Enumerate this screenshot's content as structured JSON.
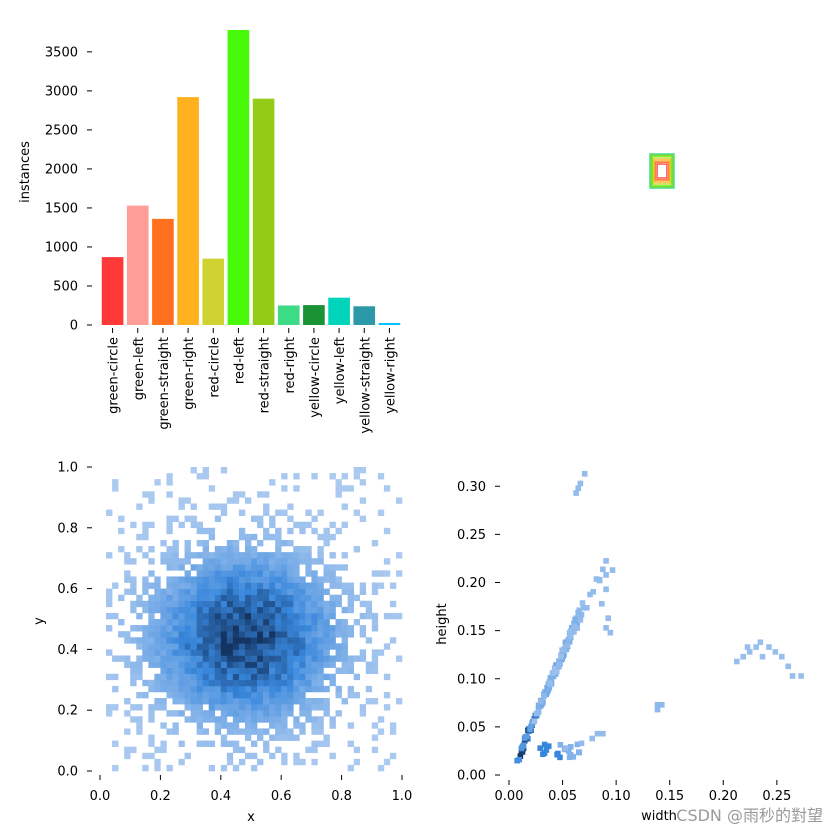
{
  "watermark": "CSDN @雨秒的對望",
  "chart_data": [
    {
      "type": "bar",
      "ylabel": "instances",
      "xlabel": "",
      "ylim": [
        0,
        3800
      ],
      "yticks": [
        0,
        500,
        1000,
        1500,
        2000,
        2500,
        3000,
        3500
      ],
      "categories": [
        "green-circle",
        "green-left",
        "green-straight",
        "green-right",
        "red-circle",
        "red-left",
        "red-straight",
        "red-right",
        "yellow-circle",
        "yellow-left",
        "yellow-straight",
        "yellow-right"
      ],
      "values": [
        870,
        1530,
        1360,
        2920,
        850,
        3780,
        2900,
        250,
        255,
        350,
        240,
        25
      ],
      "colors": [
        "#ff3838",
        "#ff9d97",
        "#ff701f",
        "#ffb21d",
        "#cfd231",
        "#48f90a",
        "#92cc17",
        "#3ddb86",
        "#1a9334",
        "#00d4bb",
        "#2c99a8",
        "#00c2ff"
      ]
    },
    {
      "type": "heatmap",
      "description_kind": "rectangle-outline-overlay",
      "outline_colors": [
        "#ff3838",
        "#ff9d97",
        "#ff701f",
        "#ffb21d",
        "#cfd231",
        "#48f90a",
        "#92cc17",
        "#3ddb86"
      ]
    },
    {
      "type": "heatmap",
      "xlabel": "x",
      "ylabel": "y",
      "xlim": [
        0,
        1
      ],
      "ylim": [
        0,
        1
      ],
      "xticks": [
        "0.0",
        "0.2",
        "0.4",
        "0.6",
        "0.8",
        "1.0"
      ],
      "yticks": [
        "0.0",
        "0.2",
        "0.4",
        "0.6",
        "0.8",
        "1.0"
      ],
      "center": [
        0.48,
        0.44
      ],
      "spread": 0.17,
      "colormap": "Blues"
    },
    {
      "type": "heatmap",
      "xlabel": "width",
      "ylabel": "height",
      "xlim": [
        0,
        0.28
      ],
      "ylim": [
        0,
        0.32
      ],
      "xticks": [
        "0.00",
        "0.05",
        "0.10",
        "0.15",
        "0.20",
        "0.25"
      ],
      "yticks": [
        "0.00",
        "0.05",
        "0.10",
        "0.15",
        "0.20",
        "0.25",
        "0.30"
      ],
      "colormap": "Blues"
    }
  ]
}
